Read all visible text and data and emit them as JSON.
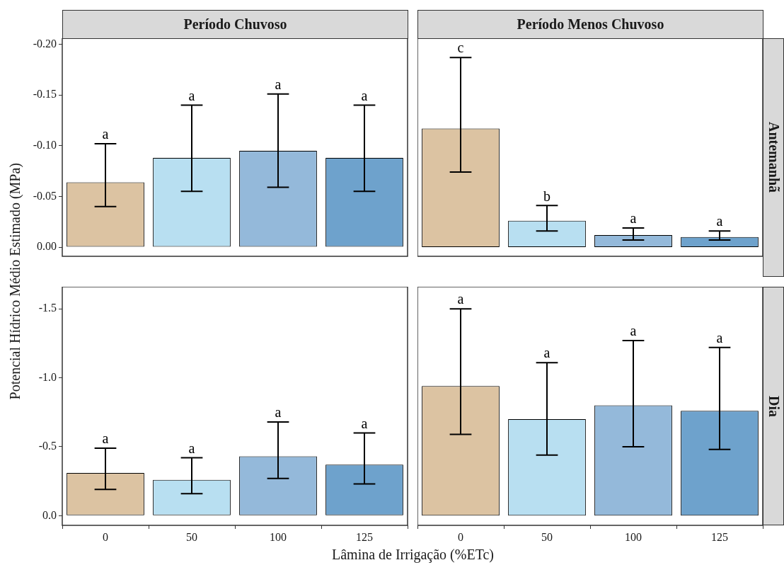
{
  "chart_data": [
    {
      "type": "bar",
      "title": "Período Chuvoso",
      "ylabel": "Potencial Hídrico Médio Estimado (MPa)",
      "tick_labels": "y",
      "categories": [
        "0",
        "50",
        "100",
        "125"
      ],
      "values": [
        -0.064,
        -0.088,
        -0.095,
        -0.088
      ],
      "colors": [
        "#dcc3a2",
        "#b8dff1",
        "#94b9da",
        "#6ea2cc"
      ],
      "errors": [
        [
          -0.102,
          -0.04
        ],
        [
          -0.14,
          -0.055
        ],
        [
          -0.151,
          -0.059
        ],
        [
          -0.14,
          -0.055
        ]
      ],
      "ylim": [
        0.009,
        -0.206
      ],
      "yticks": [
        {
          "value": 0,
          "label": "0.00"
        },
        {
          "value": -0.05,
          "label": "-0.05"
        },
        {
          "value": -0.1,
          "label": "-0.10"
        },
        {
          "value": -0.15,
          "label": "-0.15"
        },
        {
          "value": -0.2,
          "label": "-0.20"
        }
      ],
      "annotations": [
        {
          "text": "a",
          "x": "0",
          "y": -0.102
        },
        {
          "text": "a",
          "x": "50",
          "y": -0.14
        },
        {
          "text": "a",
          "x": "100",
          "y": -0.151
        },
        {
          "text": "a",
          "x": "125",
          "y": -0.14
        }
      ]
    },
    {
      "type": "bar",
      "title": "Período Menos Chuvoso",
      "y2label": "Antemanhã",
      "tick_labels": false,
      "categories": [
        "0",
        "50",
        "100",
        "125"
      ],
      "values": [
        -0.117,
        -0.026,
        -0.012,
        -0.01
      ],
      "colors": [
        "#dcc3a2",
        "#b8dff1",
        "#94b9da",
        "#6ea2cc"
      ],
      "errors": [
        [
          -0.187,
          -0.074
        ],
        [
          -0.041,
          -0.016
        ],
        [
          -0.019,
          -0.007
        ],
        [
          -0.016,
          -0.007
        ]
      ],
      "ylim": [
        0.009,
        -0.206
      ],
      "annotations": [
        {
          "text": "c",
          "x": "0",
          "y": -0.187
        },
        {
          "text": "b",
          "x": "50",
          "y": -0.041
        },
        {
          "text": "a",
          "x": "100",
          "y": -0.019
        },
        {
          "text": "a",
          "x": "125",
          "y": -0.016
        }
      ]
    },
    {
      "type": "bar",
      "xlabel": "Lâmina de Irrigação (%ETc)",
      "categories": [
        "0",
        "50",
        "100",
        "125"
      ],
      "values": [
        -0.31,
        -0.26,
        -0.43,
        -0.37
      ],
      "colors": [
        "#dcc3a2",
        "#b8dff1",
        "#94b9da",
        "#6ea2cc"
      ],
      "errors": [
        [
          -0.49,
          -0.19
        ],
        [
          -0.42,
          -0.16
        ],
        [
          -0.68,
          -0.27
        ],
        [
          -0.6,
          -0.23
        ]
      ],
      "ylim": [
        0.07,
        -1.66
      ],
      "yticks": [
        {
          "value": 0,
          "label": "0.0"
        },
        {
          "value": -0.5,
          "label": "-0.5"
        },
        {
          "value": -1,
          "label": "-1.0"
        },
        {
          "value": -1.5,
          "label": "-1.5"
        }
      ],
      "annotations": [
        {
          "text": "a",
          "x": "0",
          "y": -0.49
        },
        {
          "text": "a",
          "x": "50",
          "y": -0.42
        },
        {
          "text": "a",
          "x": "100",
          "y": -0.68
        },
        {
          "text": "a",
          "x": "125",
          "y": -0.6
        }
      ]
    },
    {
      "type": "bar",
      "y2label": "Dia",
      "tick_labels": "x",
      "categories": [
        "0",
        "50",
        "100",
        "125"
      ],
      "values": [
        -0.94,
        -0.7,
        -0.8,
        -0.76
      ],
      "colors": [
        "#dcc3a2",
        "#b8dff1",
        "#94b9da",
        "#6ea2cc"
      ],
      "errors": [
        [
          -1.5,
          -0.59
        ],
        [
          -1.11,
          -0.44
        ],
        [
          -1.27,
          -0.5
        ],
        [
          -1.22,
          -0.48
        ]
      ],
      "ylim": [
        0.07,
        -1.66
      ],
      "annotations": [
        {
          "text": "a",
          "x": "0",
          "y": -1.5
        },
        {
          "text": "a",
          "x": "50",
          "y": -1.11
        },
        {
          "text": "a",
          "x": "100",
          "y": -1.27
        },
        {
          "text": "a",
          "x": "125",
          "y": -1.22
        }
      ]
    }
  ]
}
